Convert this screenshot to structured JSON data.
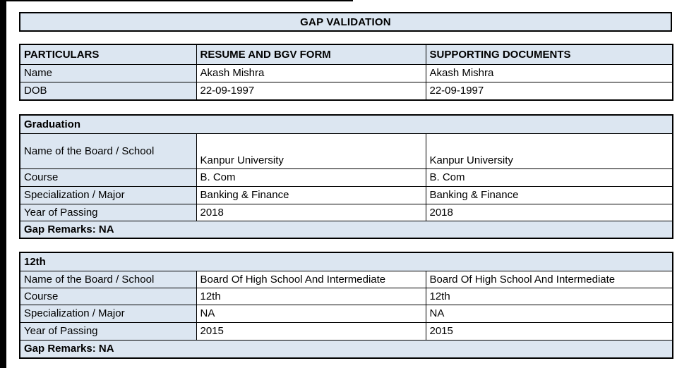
{
  "banner": {
    "title": "GAP VALIDATION"
  },
  "colors": {
    "header_fill": "#dce6f1",
    "table_border": "#000000",
    "page_frame": "#000000",
    "page_bg": "#ffffff"
  },
  "identity_table": {
    "headers": [
      "PARTICULARS",
      "RESUME AND BGV FORM",
      "SUPPORTING DOCUMENTS"
    ],
    "rows": [
      {
        "label": "Name",
        "resume": "Akash Mishra",
        "supporting": "Akash Mishra"
      },
      {
        "label": "DOB",
        "resume": "22-09-1997",
        "supporting": "22-09-1997"
      }
    ]
  },
  "sections": [
    {
      "title": "Graduation",
      "rows": [
        {
          "label": "Name of the Board / School",
          "resume": "Kanpur University",
          "supporting": "Kanpur University"
        },
        {
          "label": "Course",
          "resume": "B. Com",
          "supporting": "B. Com"
        },
        {
          "label": "Specialization / Major",
          "resume": "Banking & Finance",
          "supporting": "Banking & Finance"
        },
        {
          "label": "Year of Passing",
          "resume": "2018",
          "supporting": "2018"
        }
      ],
      "gap_remarks": "Gap Remarks: NA"
    },
    {
      "title": "12th",
      "rows": [
        {
          "label": "Name of the Board / School",
          "resume": "Board Of High School And Intermediate",
          "supporting": "Board Of High School And Intermediate"
        },
        {
          "label": "Course",
          "resume": "12th",
          "supporting": "12th"
        },
        {
          "label": "Specialization / Major",
          "resume": "NA",
          "supporting": "NA"
        },
        {
          "label": "Year of Passing",
          "resume": "2015",
          "supporting": "2015"
        }
      ],
      "gap_remarks": "Gap Remarks: NA"
    }
  ]
}
